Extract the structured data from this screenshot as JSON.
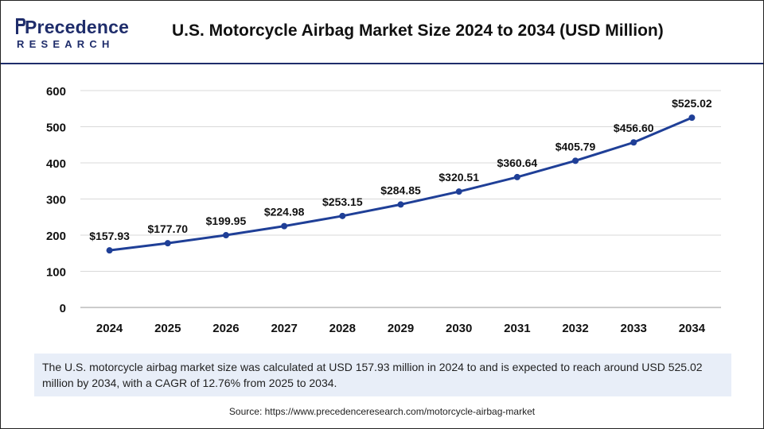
{
  "brand": {
    "name": "Precedence",
    "sub": "RESEARCH",
    "color": "#1f2d6b"
  },
  "title": "U.S. Motorcycle Airbag Market Size 2024 to 2034 (USD Million)",
  "chart_data": {
    "type": "line",
    "title": "U.S. Motorcycle Airbag Market Size 2024 to 2034 (USD Million)",
    "xlabel": "",
    "ylabel": "",
    "x": [
      "2024",
      "2025",
      "2026",
      "2027",
      "2028",
      "2029",
      "2030",
      "2031",
      "2032",
      "2033",
      "2034"
    ],
    "series": [
      {
        "values": [
          157.93,
          177.7,
          199.95,
          224.98,
          253.15,
          284.85,
          320.51,
          360.64,
          405.79,
          456.6,
          525.02
        ],
        "labels": [
          "$157.93",
          "$177.70",
          "$199.95",
          "$224.98",
          "$253.15",
          "$284.85",
          "$320.51",
          "$360.64",
          "$405.79",
          "$456.60",
          "$525.02"
        ],
        "color": "#1f3f97"
      }
    ],
    "ylim": [
      0,
      600
    ],
    "yticks": [
      "0",
      "100",
      "200",
      "300",
      "400",
      "500",
      "600"
    ],
    "grid": true
  },
  "caption": "The U.S. motorcycle airbag market size was calculated at USD 157.93 million in 2024 to and is expected to reach around USD 525.02 million by 2034, with a CAGR of 12.76% from 2025 to 2034.",
  "source": "Source: https://www.precedenceresearch.com/motorcycle-airbag-market"
}
